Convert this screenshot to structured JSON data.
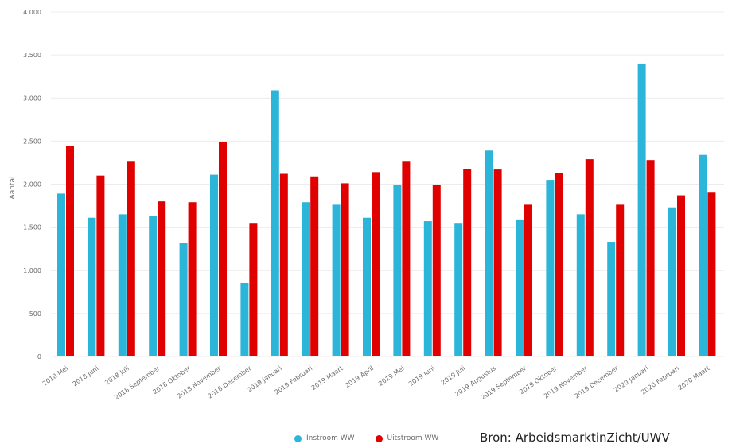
{
  "chart_data": {
    "type": "bar",
    "ylabel": "Aantal",
    "ylim": [
      0,
      4000
    ],
    "yticks": [
      0,
      500,
      1000,
      1500,
      2000,
      2500,
      3000,
      3500,
      4000
    ],
    "ytick_labels": [
      "0",
      "500",
      "1.000",
      "1.500",
      "2.000",
      "2.500",
      "3.000",
      "3.500",
      "4.000"
    ],
    "grid": true,
    "legend_position": "bottom",
    "categories": [
      "2018 Mei",
      "2018 Juni",
      "2018 Juli",
      "2018 September",
      "2018 Oktober",
      "2018 November",
      "2018 December",
      "2019 Januari",
      "2019 Februari",
      "2019 Maart",
      "2019 April",
      "2019 Mei",
      "2019 Juni",
      "2019 Juli",
      "2019 Augustus",
      "2019 September",
      "2019 Oktober",
      "2019 November",
      "2019 December",
      "2020 Januari",
      "2020 Februari",
      "2020 Maart"
    ],
    "series": [
      {
        "name": "Instroom WW",
        "color": "#2bb5d8",
        "values": [
          1890,
          1610,
          1650,
          1630,
          1320,
          2110,
          850,
          3090,
          1790,
          1770,
          1610,
          1990,
          1570,
          1550,
          2390,
          1590,
          2050,
          1650,
          1330,
          3400,
          1730,
          2340
        ]
      },
      {
        "name": "Uitstroom WW",
        "color": "#e00000",
        "values": [
          2440,
          2100,
          2270,
          1800,
          1790,
          2490,
          1550,
          2120,
          2090,
          2010,
          2140,
          2270,
          1990,
          2180,
          2170,
          1770,
          2130,
          2290,
          1770,
          2280,
          1870,
          1910
        ]
      }
    ]
  },
  "source_text": "Bron: ArbeidsmarktinZicht/UWV"
}
